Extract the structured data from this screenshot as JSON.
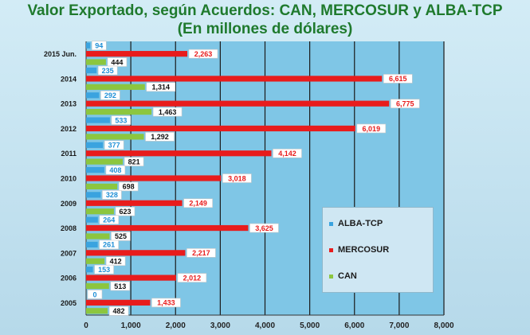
{
  "title_line1": "Valor Exportado, según Acuerdos: CAN, MERCOSUR y ALBA-TCP",
  "title_line2": "(En millones de dólares)",
  "chart_data": {
    "type": "bar",
    "orientation": "horizontal",
    "title": "Valor Exportado, según Acuerdos: CAN, MERCOSUR y ALBA-TCP (En millones de dólares)",
    "categories": [
      "2015 Jun.",
      "2014",
      "2013",
      "2012",
      "2011",
      "2010",
      "2009",
      "2008",
      "2007",
      "2006",
      "2005"
    ],
    "category_labels": [
      "2015 Jun.",
      "2014",
      "2013",
      "2012",
      "2011",
      "2010",
      "2009",
      "2008",
      "2007",
      "2006",
      "2005"
    ],
    "series": [
      {
        "name": "ALBA-TCP",
        "color": "#3aa3df",
        "values": [
          94,
          235,
          292,
          533,
          377,
          408,
          328,
          264,
          261,
          153,
          0
        ],
        "labels": [
          "94",
          "235",
          "292",
          "533",
          "377",
          "408",
          "328",
          "264",
          "261",
          "153",
          "0"
        ]
      },
      {
        "name": "MERCOSUR",
        "color": "#e81c1c",
        "values": [
          2263,
          6615,
          6775,
          6019,
          4142,
          3018,
          2149,
          3625,
          2217,
          2012,
          1433
        ],
        "labels": [
          "2,263",
          "6,615",
          "6,775",
          "6,019",
          "4,142",
          "3,018",
          "2,149",
          "3,625",
          "2,217",
          "2,012",
          "1,433"
        ]
      },
      {
        "name": "CAN",
        "color": "#8cc63f",
        "values": [
          444,
          1314,
          1463,
          1292,
          821,
          698,
          623,
          525,
          412,
          513,
          482
        ],
        "labels": [
          "444",
          "1,314",
          "1,463",
          "1,292",
          "821",
          "698",
          "623",
          "525",
          "412",
          "513",
          "482"
        ]
      }
    ],
    "xlim": [
      0,
      8000
    ],
    "xticks": [
      0,
      1000,
      2000,
      3000,
      4000,
      5000,
      6000,
      7000,
      8000
    ],
    "xtick_labels": [
      "0",
      "1,000",
      "2,000",
      "3,000",
      "4,000",
      "5,000",
      "6,000",
      "7,000",
      "8,000"
    ],
    "grid": true,
    "legend_position": "lower-right"
  },
  "colors": {
    "title": "#1f7a2d",
    "plot_background": "#7fc6e6",
    "gridline": "#1a1a1a"
  }
}
